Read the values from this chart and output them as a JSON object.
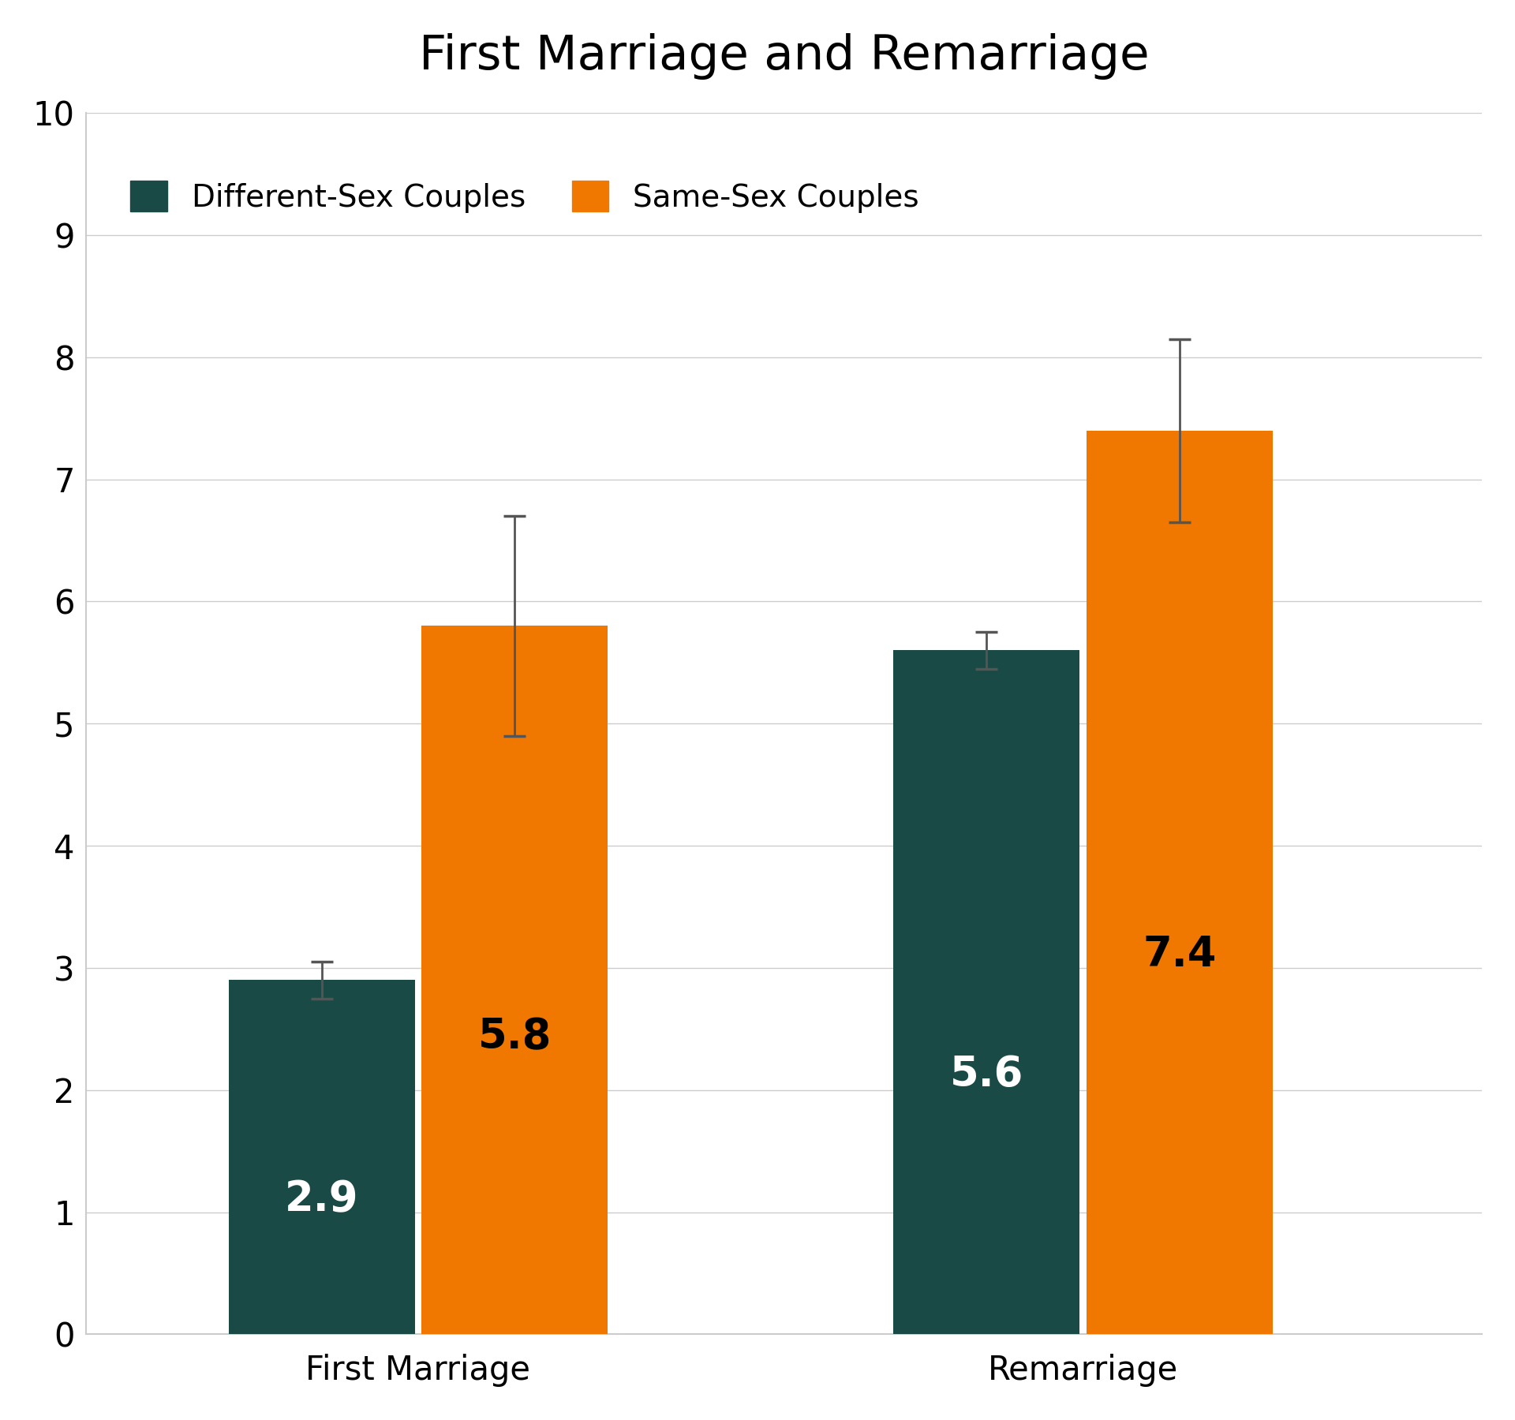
{
  "title": "First Marriage and Remarriage",
  "categories": [
    "First Marriage",
    "Remarriage"
  ],
  "different_sex_values": [
    2.9,
    5.6
  ],
  "same_sex_values": [
    5.8,
    7.4
  ],
  "different_sex_errors": [
    0.15,
    0.15
  ],
  "same_sex_errors": [
    0.9,
    0.75
  ],
  "different_sex_color": "#1a4a45",
  "same_sex_color": "#f07800",
  "bar_width": 0.28,
  "ylim": [
    0,
    10
  ],
  "yticks": [
    0,
    1,
    2,
    3,
    4,
    5,
    6,
    7,
    8,
    9,
    10
  ],
  "title_fontsize": 44,
  "tick_fontsize": 30,
  "legend_fontsize": 28,
  "bar_label_fontsize": 38,
  "background_color": "#ffffff",
  "error_color": "#555555",
  "legend_label_different": "Different-Sex Couples",
  "legend_label_same": "Same-Sex Couples",
  "ds_label_colors": [
    "white",
    "white"
  ],
  "ss_label_colors": [
    "black",
    "black"
  ]
}
